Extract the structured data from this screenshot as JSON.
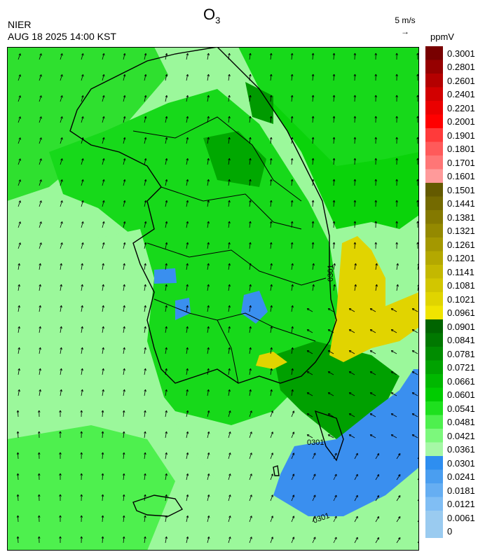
{
  "header": {
    "org": "NIER",
    "timestamp": "AUG 18 2025 14:00 KST",
    "title_main": "O",
    "title_sub": "3",
    "wind_reference": "5 m/s",
    "unit": "ppmV"
  },
  "map": {
    "contour_labels": [
      "0301",
      "0301",
      "0301"
    ],
    "colors": {
      "ocean_low": "#9bf89b",
      "land_mid": "#17d91a",
      "land_high": "#00a800",
      "yellow": "#e1d400",
      "blue": "#3a8fef",
      "border": "#000000"
    }
  },
  "legend": {
    "bins": [
      {
        "label": "0.3001",
        "color": "#780000"
      },
      {
        "label": "0.2801",
        "color": "#960000"
      },
      {
        "label": "0.2601",
        "color": "#b40000"
      },
      {
        "label": "0.2401",
        "color": "#d20000"
      },
      {
        "label": "0.2201",
        "color": "#ea0000"
      },
      {
        "label": "0.2001",
        "color": "#ff0000"
      },
      {
        "label": "0.1901",
        "color": "#ff3a3a"
      },
      {
        "label": "0.1801",
        "color": "#ff5a5a"
      },
      {
        "label": "0.1701",
        "color": "#ff7676"
      },
      {
        "label": "0.1601",
        "color": "#ff9a9a"
      },
      {
        "label": "0.1501",
        "color": "#645a00"
      },
      {
        "label": "0.1441",
        "color": "#746a00"
      },
      {
        "label": "0.1381",
        "color": "#847900"
      },
      {
        "label": "0.1321",
        "color": "#948900"
      },
      {
        "label": "0.1261",
        "color": "#a49800"
      },
      {
        "label": "0.1201",
        "color": "#b4a800"
      },
      {
        "label": "0.1141",
        "color": "#c4b800"
      },
      {
        "label": "0.1081",
        "color": "#d2c600"
      },
      {
        "label": "0.1021",
        "color": "#e0d400"
      },
      {
        "label": "0.0961",
        "color": "#f0e400"
      },
      {
        "label": "0.0901",
        "color": "#006400"
      },
      {
        "label": "0.0841",
        "color": "#007800"
      },
      {
        "label": "0.0781",
        "color": "#008c00"
      },
      {
        "label": "0.0721",
        "color": "#00a200"
      },
      {
        "label": "0.0661",
        "color": "#00b800"
      },
      {
        "label": "0.0601",
        "color": "#00cc00"
      },
      {
        "label": "0.0541",
        "color": "#1ee01e"
      },
      {
        "label": "0.0481",
        "color": "#4ef04e"
      },
      {
        "label": "0.0421",
        "color": "#7cf87c"
      },
      {
        "label": "0.0361",
        "color": "#a6f8a6"
      },
      {
        "label": "0.0301",
        "color": "#2e8ef0"
      },
      {
        "label": "0.0241",
        "color": "#4a9ef0"
      },
      {
        "label": "0.0181",
        "color": "#66aef2"
      },
      {
        "label": "0.0121",
        "color": "#80bef4"
      },
      {
        "label": "0.0061",
        "color": "#9acbf0"
      },
      {
        "label": "0",
        "color": "#9acbf0"
      }
    ]
  }
}
